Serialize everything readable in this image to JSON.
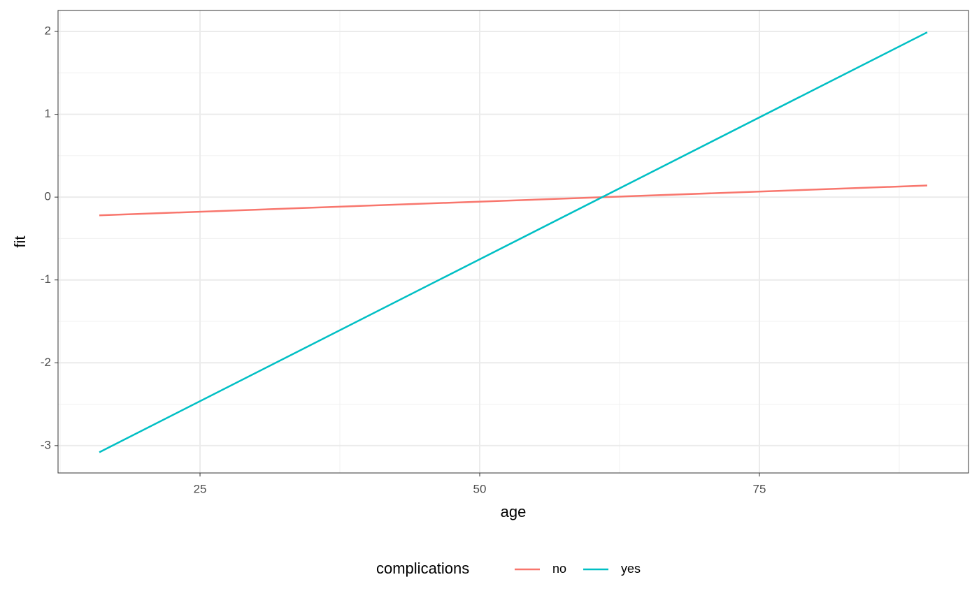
{
  "chart_data": {
    "type": "line",
    "x_label": "age",
    "y_label": "fit",
    "x": [
      16,
      90
    ],
    "series": [
      {
        "name": "no",
        "color": "#F8766D",
        "values": [
          -0.22,
          0.14
        ]
      },
      {
        "name": "yes",
        "color": "#00BFC4",
        "values": [
          -3.08,
          1.99
        ]
      }
    ],
    "xlim": [
      12.31,
      93.69
    ],
    "xticks": [
      25,
      50,
      75
    ],
    "ylim": [
      -3.33,
      2.253
    ],
    "yticks": [
      -3,
      -2,
      -1,
      0,
      1,
      2
    ],
    "grid": true,
    "minor_grid": true,
    "legend_title": "complications",
    "legend_position": "bottom"
  }
}
